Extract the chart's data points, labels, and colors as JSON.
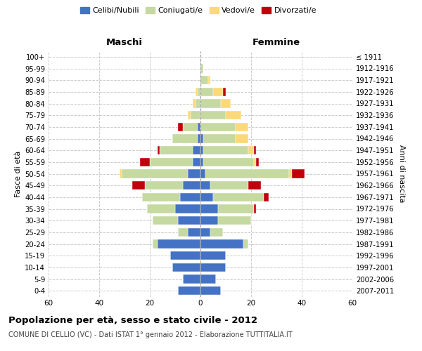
{
  "age_groups_bottom_to_top": [
    "0-4",
    "5-9",
    "10-14",
    "15-19",
    "20-24",
    "25-29",
    "30-34",
    "35-39",
    "40-44",
    "45-49",
    "50-54",
    "55-59",
    "60-64",
    "65-69",
    "70-74",
    "75-79",
    "80-84",
    "85-89",
    "90-94",
    "95-99",
    "100+"
  ],
  "birth_years_bottom_to_top": [
    "2007-2011",
    "2002-2006",
    "1997-2001",
    "1992-1996",
    "1987-1991",
    "1982-1986",
    "1977-1981",
    "1972-1976",
    "1967-1971",
    "1962-1966",
    "1957-1961",
    "1952-1956",
    "1947-1951",
    "1942-1946",
    "1937-1941",
    "1932-1936",
    "1927-1931",
    "1922-1926",
    "1917-1921",
    "1912-1916",
    "≤ 1911"
  ],
  "male": {
    "celibe": [
      9,
      7,
      11,
      12,
      17,
      5,
      9,
      10,
      8,
      7,
      5,
      3,
      3,
      1,
      1,
      0,
      0,
      0,
      0,
      0,
      0
    ],
    "coniugato": [
      0,
      0,
      0,
      0,
      2,
      4,
      10,
      11,
      15,
      15,
      26,
      17,
      13,
      10,
      6,
      4,
      2,
      1,
      0,
      0,
      0
    ],
    "vedovo": [
      0,
      0,
      0,
      0,
      0,
      0,
      0,
      0,
      0,
      0,
      1,
      0,
      0,
      0,
      0,
      1,
      1,
      1,
      0,
      0,
      0
    ],
    "divorziato": [
      0,
      0,
      0,
      0,
      0,
      0,
      0,
      0,
      0,
      5,
      0,
      4,
      1,
      0,
      2,
      0,
      0,
      0,
      0,
      0,
      0
    ]
  },
  "female": {
    "nubile": [
      8,
      6,
      10,
      10,
      17,
      4,
      7,
      7,
      5,
      4,
      2,
      1,
      1,
      1,
      0,
      0,
      0,
      0,
      0,
      0,
      0
    ],
    "coniugata": [
      0,
      0,
      0,
      0,
      2,
      5,
      13,
      14,
      20,
      15,
      33,
      20,
      18,
      13,
      14,
      10,
      8,
      5,
      3,
      1,
      0
    ],
    "vedova": [
      0,
      0,
      0,
      0,
      0,
      0,
      0,
      0,
      0,
      0,
      1,
      1,
      2,
      5,
      5,
      6,
      4,
      4,
      1,
      0,
      0
    ],
    "divorziata": [
      0,
      0,
      0,
      0,
      0,
      0,
      0,
      1,
      2,
      5,
      5,
      1,
      1,
      0,
      0,
      0,
      0,
      1,
      0,
      0,
      0
    ]
  },
  "colors": {
    "celibe": "#4472c4",
    "coniugato": "#c5d9a0",
    "vedovo": "#fcd878",
    "divorziato": "#c0000b"
  },
  "legend_labels": [
    "Celibi/Nubili",
    "Coniugati/e",
    "Vedovi/e",
    "Divorzati/e"
  ],
  "title": "Popolazione per età, sesso e stato civile - 2012",
  "subtitle": "COMUNE DI CELLIO (VC) - Dati ISTAT 1° gennaio 2012 - Elaborazione TUTTITALIA.IT",
  "ylabel_left": "Fasce di età",
  "ylabel_right": "Anni di nascita",
  "label_maschi": "Maschi",
  "label_femmine": "Femmine",
  "xlim": 60,
  "background_color": "#ffffff",
  "grid_color": "#cccccc"
}
